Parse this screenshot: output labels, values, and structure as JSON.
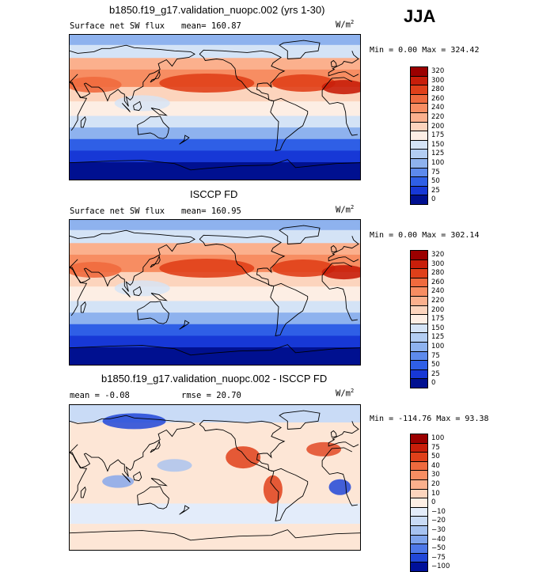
{
  "season": "JJA",
  "colors": {
    "ocean_outline": "#000000",
    "land_outline": "#000000"
  },
  "chart_data": [
    {
      "type": "heatmap",
      "title": "b1850.f19_g17.validation_nuopc.002 (yrs 1-30)",
      "variable": "Surface net SW flux",
      "stat_text": "mean= 160.87",
      "units": "W/m",
      "units_sup": "2",
      "minmax_text": "Min =    0.00 Max = 324.42",
      "min": 0.0,
      "max": 324.42,
      "mean": 160.87,
      "levels": [
        "320",
        "300",
        "280",
        "260",
        "240",
        "220",
        "200",
        "175",
        "150",
        "125",
        "100",
        "75",
        "50",
        "25",
        "0"
      ],
      "colors": [
        "#9b0000",
        "#c81e0a",
        "#e0401a",
        "#ef6a3e",
        "#f78d62",
        "#fbb08d",
        "#fcd4bd",
        "#fdeee4",
        "#d4e3f6",
        "#b3cdf2",
        "#8eb2ee",
        "#5d8aec",
        "#2f5fe6",
        "#1738d6",
        "#001090"
      ]
    },
    {
      "type": "heatmap",
      "title": "ISCCP FD",
      "variable": "Surface net SW flux",
      "stat_text": "mean= 160.95",
      "units": "W/m",
      "units_sup": "2",
      "minmax_text": "Min =    0.00 Max = 302.14",
      "min": 0.0,
      "max": 302.14,
      "mean": 160.95,
      "levels": [
        "320",
        "300",
        "280",
        "260",
        "240",
        "220",
        "200",
        "175",
        "150",
        "125",
        "100",
        "75",
        "50",
        "25",
        "0"
      ],
      "colors": [
        "#9b0000",
        "#c81e0a",
        "#e0401a",
        "#ef6a3e",
        "#f78d62",
        "#fbb08d",
        "#fcd4bd",
        "#fdeee4",
        "#d4e3f6",
        "#b3cdf2",
        "#8eb2ee",
        "#5d8aec",
        "#2f5fe6",
        "#1738d6",
        "#001090"
      ]
    },
    {
      "type": "heatmap",
      "title": "b1850.f19_g17.validation_nuopc.002 - ISCCP FD",
      "variable": "",
      "stat_text": "mean =   -0.08",
      "stat_text2": "rmse =  20.70",
      "units": "W/m",
      "units_sup": "2",
      "minmax_text": "Min = -114.76 Max =  93.38",
      "min": -114.76,
      "max": 93.38,
      "mean": -0.08,
      "rmse": 20.7,
      "levels": [
        "100",
        "75",
        "50",
        "40",
        "30",
        "20",
        "10",
        "0",
        "−10",
        "−20",
        "−30",
        "−40",
        "−50",
        "−75",
        "−100"
      ],
      "colors": [
        "#9b0000",
        "#c81e0a",
        "#e0401a",
        "#ef6a3e",
        "#f78d62",
        "#fbb08d",
        "#fcd4bd",
        "#fdeee4",
        "#e3ecfa",
        "#c9dbf6",
        "#a6c2f0",
        "#7fa4ec",
        "#4e78e8",
        "#2147d8",
        "#00109a"
      ]
    }
  ]
}
